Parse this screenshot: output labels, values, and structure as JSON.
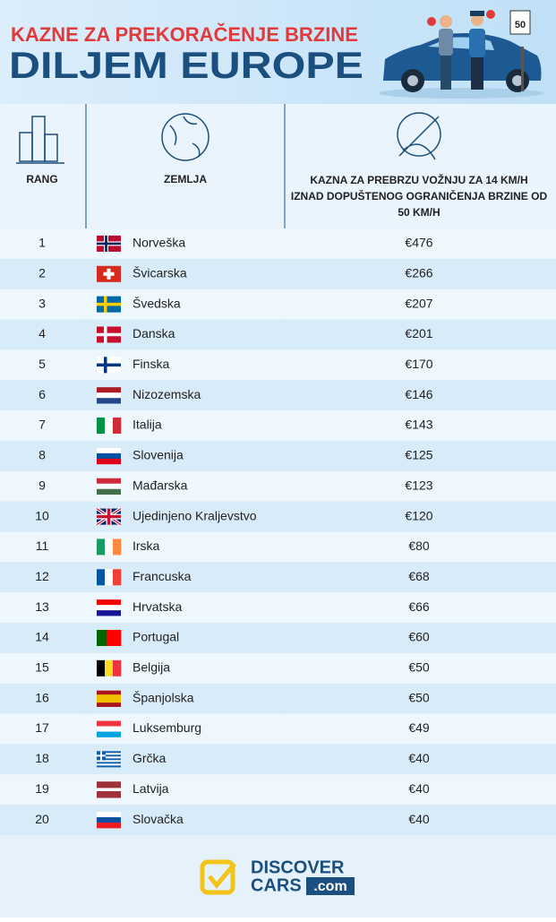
{
  "header": {
    "title_top": "KAZNE ZA PREKORAČENJE BRZINE",
    "title_main": "DILJEM EUROPE",
    "sign": "50"
  },
  "table": {
    "columns": [
      "RANG",
      "ZEMLJA",
      "KAZNA ZA PREBRZU VOŽNJU ZA 14 KM/H IZNAD DOPUŠTENOG OGRANIČENJA BRZINE OD 50 KM/H"
    ],
    "rows": [
      [
        "1",
        "Norveška",
        "€476"
      ],
      [
        "2",
        "Švicarska",
        "€266"
      ],
      [
        "3",
        "Švedska",
        "€207"
      ],
      [
        "4",
        "Danska",
        "€201"
      ],
      [
        "5",
        "Finska",
        "€170"
      ],
      [
        "6",
        "Nizozemska",
        "€146"
      ],
      [
        "7",
        "Italija",
        "€143"
      ],
      [
        "8",
        "Slovenija",
        "€125"
      ],
      [
        "9",
        "Mađarska",
        "€123"
      ],
      [
        "10",
        "Ujedinjeno Kraljevstvo",
        "€120"
      ],
      [
        "11",
        "Irska",
        "€80"
      ],
      [
        "12",
        "Francuska",
        "€68"
      ],
      [
        "13",
        "Hrvatska",
        "€66"
      ],
      [
        "14",
        "Portugal",
        "€60"
      ],
      [
        "15",
        "Belgija",
        "€50"
      ],
      [
        "16",
        "Španjolska",
        "€50"
      ],
      [
        "17",
        "Luksemburg",
        "€49"
      ],
      [
        "18",
        "Grčka",
        "€40"
      ],
      [
        "19",
        "Latvija",
        "€40"
      ],
      [
        "20",
        "Slovačka",
        "€40"
      ]
    ]
  },
  "footer": {
    "logo_top": "DISCOVER",
    "logo_bottom": "CARS",
    "logo_suffix": ".com"
  }
}
